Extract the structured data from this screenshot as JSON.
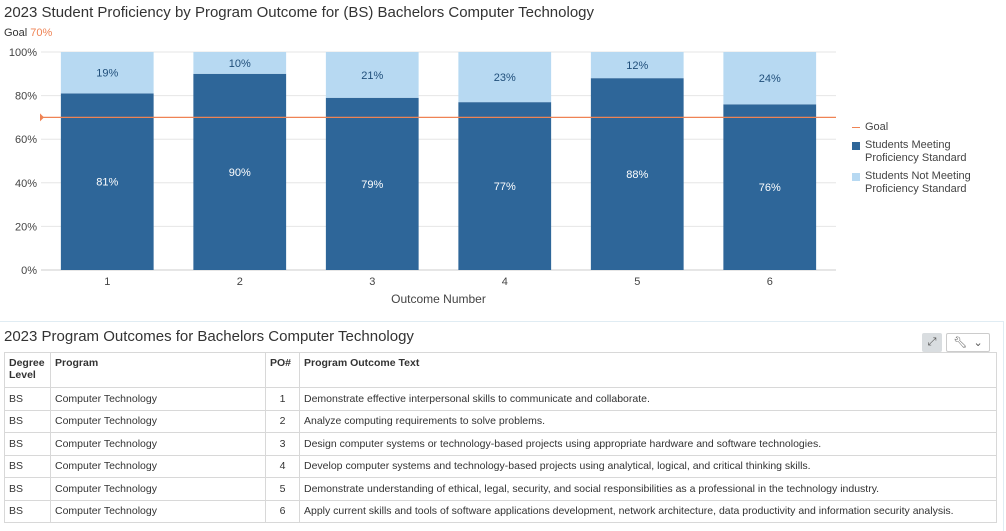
{
  "chart": {
    "title": "2023 Student Proficiency by Program Outcome for (BS) Bachelors Computer Technology",
    "goal_prefix": "Goal",
    "goal_value": "70%"
  },
  "chart_data": {
    "type": "bar",
    "stacked": true,
    "title": "2023 Student Proficiency by Program Outcome for (BS) Bachelors Computer Technology",
    "xlabel": "Outcome Number",
    "ylabel": "",
    "categories": [
      "1",
      "2",
      "3",
      "4",
      "5",
      "6"
    ],
    "series": [
      {
        "name": "Students Meeting Proficiency Standard",
        "values": [
          81,
          90,
          79,
          77,
          88,
          76
        ],
        "color": "#2e6699"
      },
      {
        "name": "Students Not Meeting Proficiency Standard",
        "values": [
          19,
          10,
          21,
          23,
          12,
          24
        ],
        "color": "#b7d9f2"
      }
    ],
    "goal": {
      "name": "Goal",
      "value": 70,
      "color": "#ef8354"
    },
    "ylim": [
      0,
      100
    ],
    "yticks": [
      "0%",
      "20%",
      "40%",
      "60%",
      "80%",
      "100%"
    ],
    "value_suffix": "%",
    "grid": true,
    "legend_position": "right"
  },
  "legend": {
    "goal": "Goal",
    "meeting_line1": "Students Meeting",
    "meeting_line2": "Proficiency Standard",
    "not_meeting_line1": "Students Not Meeting",
    "not_meeting_line2": "Proficiency Standard"
  },
  "panel": {
    "title": "2023 Program Outcomes for Bachelors Computer Technology",
    "expand_icon": "expand-icon",
    "settings_icon": "wrench-icon",
    "dropdown_icon": "chevron-down-icon"
  },
  "table": {
    "headers": {
      "degree_line1": "Degree",
      "degree_line2": "Level",
      "program": "Program",
      "po": "PO#",
      "text": "Program Outcome Text"
    },
    "rows": [
      {
        "degree": "BS",
        "program": "Computer Technology",
        "po": "1",
        "text": "Demonstrate effective interpersonal skills to communicate and collaborate."
      },
      {
        "degree": "BS",
        "program": "Computer Technology",
        "po": "2",
        "text": "Analyze computing requirements to solve problems."
      },
      {
        "degree": "BS",
        "program": "Computer Technology",
        "po": "3",
        "text": "Design computer systems or technology-based projects using appropriate hardware and software technologies."
      },
      {
        "degree": "BS",
        "program": "Computer Technology",
        "po": "4",
        "text": "Develop computer systems and technology-based projects using analytical, logical, and critical thinking skills."
      },
      {
        "degree": "BS",
        "program": "Computer Technology",
        "po": "5",
        "text": "Demonstrate understanding of ethical, legal, security, and social responsibilities as a professional in the technology industry."
      },
      {
        "degree": "BS",
        "program": "Computer Technology",
        "po": "6",
        "text": "Apply current skills and tools of software applications development, network architecture, data productivity and information security analysis."
      }
    ]
  }
}
